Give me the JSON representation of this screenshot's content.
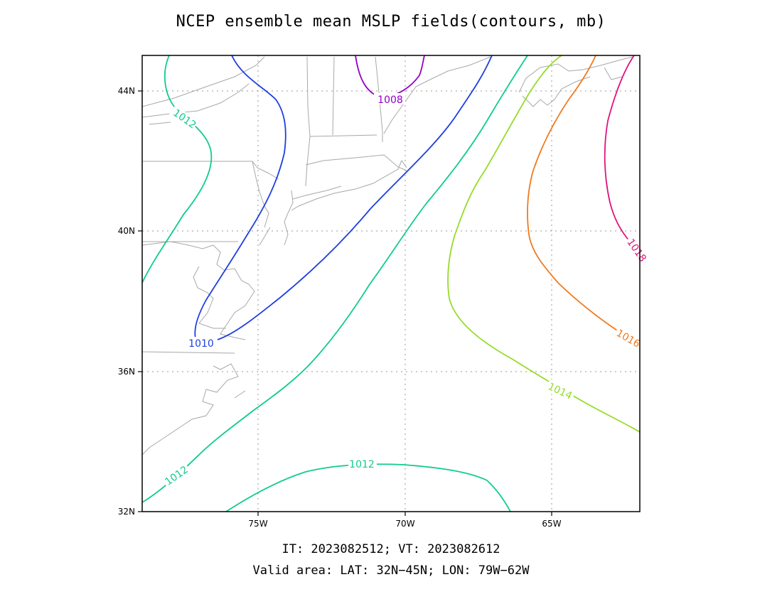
{
  "title": "NCEP ensemble mean MSLP fields(contours, mb)",
  "footer": {
    "line1": "IT: 2023082512; VT: 2023082612",
    "line2": "Valid area: LAT: 32N−45N; LON: 79W−62W"
  },
  "axes": {
    "lat_ticks": [
      "44N",
      "40N",
      "36N",
      "32N"
    ],
    "lon_ticks": [
      "75W",
      "70W",
      "65W"
    ]
  },
  "contours": [
    {
      "level": "1008",
      "label": "1008",
      "color": "#9400c8"
    },
    {
      "level": "1010",
      "label": "1010",
      "color": "#1f3fe0"
    },
    {
      "level": "1012",
      "label": "1012",
      "color": "#10cc8c"
    },
    {
      "level": "1014",
      "label": "1014",
      "color": "#96dc2a"
    },
    {
      "level": "1016",
      "label": "1016",
      "color": "#f07a1e"
    },
    {
      "level": "1018",
      "label": "1018",
      "color": "#e0147c"
    }
  ],
  "contour_labels": {
    "c1008": "1008",
    "c1010": "1010",
    "c1012_west": "1012",
    "c1012_south": "1012",
    "c1012_sw": "1012",
    "c1014": "1014",
    "c1016": "1016",
    "c1018": "1018"
  }
}
